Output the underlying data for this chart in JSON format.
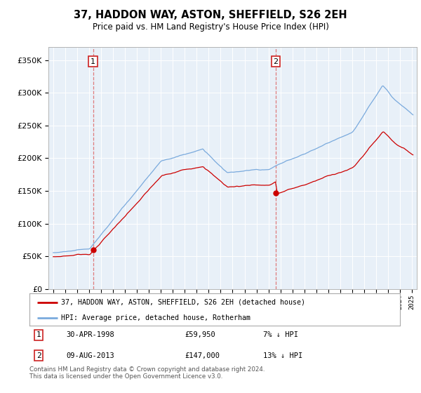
{
  "title": "37, HADDON WAY, ASTON, SHEFFIELD, S26 2EH",
  "subtitle": "Price paid vs. HM Land Registry's House Price Index (HPI)",
  "legend_line1": "37, HADDON WAY, ASTON, SHEFFIELD, S26 2EH (detached house)",
  "legend_line2": "HPI: Average price, detached house, Rotherham",
  "annotation1_date": "30-APR-1998",
  "annotation1_price": "£59,950",
  "annotation1_hpi": "7% ↓ HPI",
  "annotation2_date": "09-AUG-2013",
  "annotation2_price": "£147,000",
  "annotation2_hpi": "13% ↓ HPI",
  "footer": "Contains HM Land Registry data © Crown copyright and database right 2024.\nThis data is licensed under the Open Government Licence v3.0.",
  "price_color": "#cc0000",
  "hpi_color": "#7aaadd",
  "plot_bg_color": "#e8f0f8",
  "background_color": "#ffffff",
  "ylim": [
    0,
    370000
  ],
  "yticks": [
    0,
    50000,
    100000,
    150000,
    200000,
    250000,
    300000,
    350000
  ],
  "sale1_year": 1998.33,
  "sale1_price": 59950,
  "sale2_year": 2013.6,
  "sale2_price": 147000,
  "xlim_left": 1994.6,
  "xlim_right": 2025.4
}
